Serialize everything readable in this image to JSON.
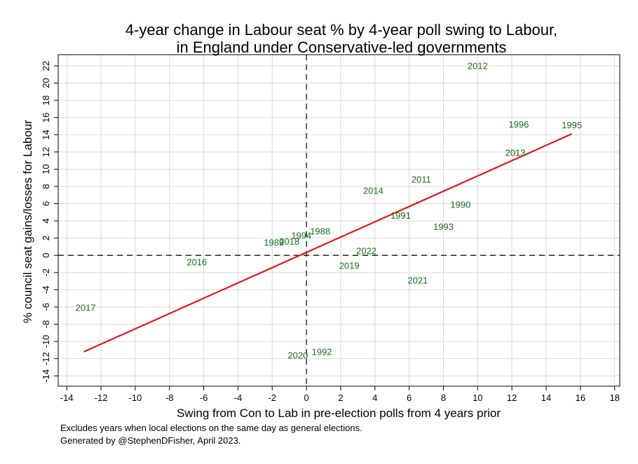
{
  "chart_data": {
    "type": "scatter",
    "title_lines": [
      "4-year change in Labour seat % by 4-year poll swing to Labour,",
      "in England under Conservative-led governments"
    ],
    "xlabel": "Swing from Con to Lab in pre-election polls from 4 years prior",
    "ylabel": "% council seat gains/losses for Labour",
    "xlim": [
      -14.5,
      18.3
    ],
    "ylim": [
      -15.2,
      23.3
    ],
    "x_ticks": [
      -14,
      -12,
      -10,
      -8,
      -6,
      -4,
      -2,
      0,
      2,
      4,
      6,
      8,
      10,
      12,
      14,
      16,
      18
    ],
    "y_ticks": [
      -14,
      -12,
      -10,
      -8,
      -6,
      -4,
      -2,
      0,
      2,
      4,
      6,
      8,
      10,
      12,
      14,
      16,
      18,
      20,
      22
    ],
    "grid": true,
    "reference_lines": {
      "x": 0,
      "y": 0,
      "style": "dashed"
    },
    "colors": {
      "labels": "#1a6e1a",
      "fit_line": "#e8141b",
      "grid": "#d9d9d9",
      "reference": "#000000"
    },
    "points": [
      {
        "label": "2012",
        "x": 10.0,
        "y": 22.0
      },
      {
        "label": "1996",
        "x": 12.4,
        "y": 15.2
      },
      {
        "label": "1995",
        "x": 15.5,
        "y": 15.1
      },
      {
        "label": "2013",
        "x": 12.2,
        "y": 11.9
      },
      {
        "label": "2011",
        "x": 6.7,
        "y": 8.8
      },
      {
        "label": "2014",
        "x": 3.9,
        "y": 7.5
      },
      {
        "label": "1990",
        "x": 9.0,
        "y": 5.9
      },
      {
        "label": "1991",
        "x": 5.5,
        "y": 4.6
      },
      {
        "label": "1993",
        "x": 8.0,
        "y": 3.3
      },
      {
        "label": "1988",
        "x": 0.8,
        "y": 2.8
      },
      {
        "label": "1994",
        "x": -0.3,
        "y": 2.3
      },
      {
        "label": "1989",
        "x": -1.9,
        "y": 1.5
      },
      {
        "label": "2018",
        "x": -1.0,
        "y": 1.6
      },
      {
        "label": "2022",
        "x": 3.5,
        "y": 0.5
      },
      {
        "label": "2016",
        "x": -6.4,
        "y": -0.8
      },
      {
        "label": "2019",
        "x": 2.5,
        "y": -1.2
      },
      {
        "label": "2021",
        "x": 6.5,
        "y": -2.9
      },
      {
        "label": "2017",
        "x": -12.9,
        "y": -6.1
      },
      {
        "label": "1992",
        "x": 0.9,
        "y": -11.2
      },
      {
        "label": "2020",
        "x": -0.5,
        "y": -11.6
      }
    ],
    "fit_line": {
      "x": [
        -13.0,
        15.5
      ],
      "y": [
        -11.2,
        14.1
      ]
    }
  },
  "notes": [
    "Excludes years when local elections on the same day as general elections.",
    "Generated by @StephenDFisher, April 2023."
  ]
}
